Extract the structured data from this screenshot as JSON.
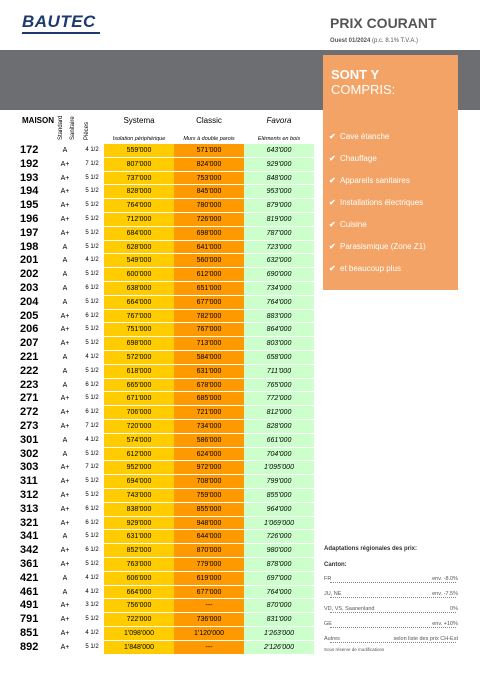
{
  "header": {
    "logo": "BAUTEC",
    "title": "PRIX COURANT",
    "edition": "Ouest 01/2024",
    "vat_note": "(p.c. 8.1% T.V.A.)"
  },
  "table": {
    "columns": {
      "house": "MAISON",
      "standard": "Standard",
      "sanitary": "Sanitaire",
      "rooms": "Pièces",
      "systema": "Systema",
      "classic": "Classic",
      "favora": "Favora"
    },
    "subtitles": {
      "systema": "Isolation périphérique",
      "classic": "Murs à double parois",
      "favora": "Eléments en bois"
    },
    "rows": [
      [
        "172",
        "A",
        "4 1/2",
        "559'000",
        "571'000",
        "643'000"
      ],
      [
        "192",
        "A+",
        "7 1/2",
        "807'000",
        "824'000",
        "929'000"
      ],
      [
        "193",
        "A+",
        "5 1/2",
        "737'000",
        "753'000",
        "848'000"
      ],
      [
        "194",
        "A+",
        "5 1/2",
        "828'000",
        "845'000",
        "953'000"
      ],
      [
        "195",
        "A+",
        "5 1/2",
        "764'000",
        "780'000",
        "879'000"
      ],
      [
        "196",
        "A+",
        "5 1/2",
        "712'000",
        "726'000",
        "819'000"
      ],
      [
        "197",
        "A+",
        "5 1/2",
        "684'000",
        "698'000",
        "787'000"
      ],
      [
        "198",
        "A",
        "5 1/2",
        "628'000",
        "641'000",
        "723'000"
      ],
      [
        "201",
        "A",
        "4 1/2",
        "549'000",
        "560'000",
        "632'000"
      ],
      [
        "202",
        "A",
        "5 1/2",
        "600'000",
        "612'000",
        "690'000"
      ],
      [
        "203",
        "A",
        "6 1/2",
        "638'000",
        "651'000",
        "734'000"
      ],
      [
        "204",
        "A",
        "5 1/2",
        "664'000",
        "677'000",
        "764'000"
      ],
      [
        "205",
        "A+",
        "6 1/2",
        "767'000",
        "782'000",
        "883'000"
      ],
      [
        "206",
        "A+",
        "5 1/2",
        "751'000",
        "767'000",
        "864'000"
      ],
      [
        "207",
        "A+",
        "5 1/2",
        "698'000",
        "713'000",
        "803'000"
      ],
      [
        "221",
        "A",
        "4 1/2",
        "572'000",
        "584'000",
        "658'000"
      ],
      [
        "222",
        "A",
        "5 1/2",
        "618'000",
        "631'000",
        "711'000"
      ],
      [
        "223",
        "A",
        "6 1/2",
        "665'000",
        "678'000",
        "765'000"
      ],
      [
        "271",
        "A+",
        "5 1/2",
        "671'000",
        "685'000",
        "772'000"
      ],
      [
        "272",
        "A+",
        "6 1/2",
        "706'000",
        "721'000",
        "812'000"
      ],
      [
        "273",
        "A+",
        "7 1/2",
        "720'000",
        "734'000",
        "828'000"
      ],
      [
        "301",
        "A",
        "4 1/2",
        "574'000",
        "586'000",
        "661'000"
      ],
      [
        "302",
        "A",
        "5 1/2",
        "612'000",
        "624'000",
        "704'000"
      ],
      [
        "303",
        "A+",
        "7 1/2",
        "952'000",
        "972'000",
        "1'095'000"
      ],
      [
        "311",
        "A+",
        "5 1/2",
        "694'000",
        "708'000",
        "799'000"
      ],
      [
        "312",
        "A+",
        "5 1/2",
        "743'000",
        "759'000",
        "855'000"
      ],
      [
        "313",
        "A+",
        "6 1/2",
        "838'000",
        "855'000",
        "964'000"
      ],
      [
        "321",
        "A+",
        "6 1/2",
        "929'000",
        "948'000",
        "1'069'000"
      ],
      [
        "341",
        "A",
        "5 1/2",
        "631'000",
        "644'000",
        "726'000"
      ],
      [
        "342",
        "A+",
        "6 1/2",
        "852'000",
        "870'000",
        "980'000"
      ],
      [
        "361",
        "A+",
        "5 1/2",
        "763'000",
        "779'000",
        "878'000"
      ],
      [
        "421",
        "A",
        "4 1/2",
        "606'000",
        "619'000",
        "697'000"
      ],
      [
        "461",
        "A",
        "4 1/2",
        "664'000",
        "677'000",
        "764'000"
      ],
      [
        "491",
        "A+",
        "3 1/2",
        "756'000",
        "---",
        "870'000"
      ],
      [
        "791",
        "A+",
        "5 1/2",
        "722'000",
        "736'000",
        "831'000"
      ],
      [
        "851",
        "A+",
        "4 1/2",
        "1'098'000",
        "1'120'000",
        "1'263'000"
      ],
      [
        "892",
        "A+",
        "5 1/2",
        "1'848'000",
        "---",
        "2'126'000"
      ]
    ]
  },
  "included": {
    "title_line1": "SONT Y",
    "title_line2": "COMPRIS:",
    "items": [
      "Cave étanche",
      "Chauffage",
      "Appareils sanitaires",
      "Installations électriques",
      "Cuisine",
      "Parasismique (Zone Z1)",
      "et beaucoup plus"
    ]
  },
  "adaptations": {
    "title": "Adaptations régionales des prix:",
    "canton_label": "Canton:",
    "lines": [
      [
        "FR",
        "env. -8.0%"
      ],
      [
        "JU, NE",
        "env. -7.5%"
      ],
      [
        "VD, VS, Saanenland",
        "0%"
      ],
      [
        "GE",
        "env. +10%"
      ],
      [
        "Autres",
        "selon liste des prix CH-Est"
      ]
    ],
    "note": "Sous réserve de modifications"
  }
}
